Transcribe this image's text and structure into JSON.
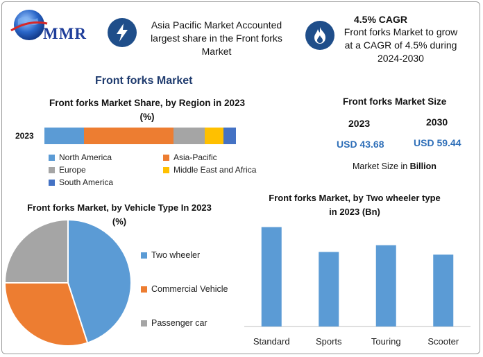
{
  "brand": {
    "logo_text": "MMR"
  },
  "header": {
    "box1_text": "Asia Pacific Market Accounted largest share in the Front forks Market",
    "box2_title": "4.5% CAGR",
    "box2_text": "Front forks Market to grow at a CAGR of 4.5% during 2024-2030"
  },
  "main_title": "Front forks Market",
  "market_size": {
    "title": "Front forks Market Size",
    "year1": "2023",
    "year2": "2030",
    "value1": "USD 43.68",
    "value2": "USD 59.44",
    "note_prefix": "Market Size in ",
    "note_bold": "Billion"
  },
  "colors": {
    "blue": "#5b9bd5",
    "orange": "#ed7d31",
    "gray": "#a5a5a5",
    "yellow": "#ffc000",
    "darkblue": "#4472c4"
  },
  "chart_data": [
    {
      "type": "bar",
      "orientation": "horizontal-stacked",
      "title": "Front forks Market Share, by Region in 2023 (%)",
      "categories": [
        "2023"
      ],
      "series": [
        {
          "name": "North America",
          "values": [
            19
          ],
          "color": "#5b9bd5"
        },
        {
          "name": "Asia-Pacific",
          "values": [
            43
          ],
          "color": "#ed7d31"
        },
        {
          "name": "Europe",
          "values": [
            15
          ],
          "color": "#a5a5a5"
        },
        {
          "name": "Middle East and Africa",
          "values": [
            9
          ],
          "color": "#ffc000"
        },
        {
          "name": "South America",
          "values": [
            6
          ],
          "color": "#4472c4"
        }
      ],
      "xlim": [
        0,
        100
      ],
      "legend": "bottom"
    },
    {
      "type": "pie",
      "title": "Front forks Market, by Vehicle Type In 2023 (%)",
      "labels": [
        "Two wheeler",
        "Commercial Vehicle",
        "Passenger car"
      ],
      "values": [
        45,
        30,
        25
      ],
      "colors": [
        "#5b9bd5",
        "#ed7d31",
        "#a5a5a5"
      ],
      "legend": "right"
    },
    {
      "type": "bar",
      "title": "Front forks Market, by Two wheeler type in 2023 (Bn)",
      "categories": [
        "Standard",
        "Sports",
        "Touring",
        "Scooter"
      ],
      "values": [
        14.8,
        11.1,
        12.1,
        10.7
      ],
      "ylim": [
        0,
        16
      ],
      "color": "#5b9bd5"
    }
  ]
}
